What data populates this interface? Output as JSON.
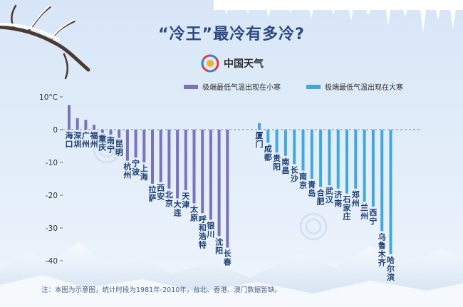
{
  "title": "“冷王”最冷有多冷?",
  "brand": {
    "name": "中国天气",
    "logo_icon": "china-weather-logo-icon"
  },
  "note": "注：本图为示意图，统计时段为1981年-2010年，台北、香港、澳门数据暂缺。",
  "colors": {
    "xiaohan": "#7a72bb",
    "dahan": "#3fa9df",
    "title": "#2c4a7e",
    "city": "#1e3f72"
  },
  "chart_data": {
    "type": "bar",
    "ylim": [
      -40,
      10
    ],
    "yticks": [
      10,
      0,
      -10,
      -20,
      -30,
      -40
    ],
    "yunit": "°C",
    "grid": false,
    "legend_placement": "top-right",
    "series": [
      {
        "name": "极端最低气温出现在小寒",
        "categories": [
          "海口",
          "深圳",
          "广州",
          "福州",
          "重庆",
          "南宁",
          "昆明",
          "杭州",
          "宁波",
          "上海",
          "拉萨",
          "西安",
          "北京",
          "大连",
          "天津",
          "太原",
          "呼和浩特",
          "银川",
          "沈阳",
          "长春"
        ],
        "values": [
          7.5,
          3.5,
          3.0,
          1.5,
          -1.0,
          -1.5,
          -2.5,
          -9.5,
          -8.5,
          -10.0,
          -16.5,
          -16.0,
          -18.0,
          -21.0,
          -18.5,
          -22.5,
          -25.5,
          -27.5,
          -32.5,
          -36.0
        ]
      },
      {
        "name": "极端最低气温出现在大寒",
        "categories": [
          "厦门",
          "成都",
          "贵阳",
          "南昌",
          "长沙",
          "南京",
          "青岛",
          "合肥",
          "武汉",
          "济南",
          "石家庄",
          "郑州",
          "兰州",
          "西宁",
          "乌鲁木齐",
          "哈尔滨"
        ],
        "values": [
          2.0,
          -4.0,
          -7.0,
          -8.0,
          -10.5,
          -12.5,
          -15.0,
          -17.5,
          -17.0,
          -18.0,
          -19.5,
          -18.0,
          -22.0,
          -23.5,
          -31.0,
          -38.0
        ]
      }
    ]
  }
}
